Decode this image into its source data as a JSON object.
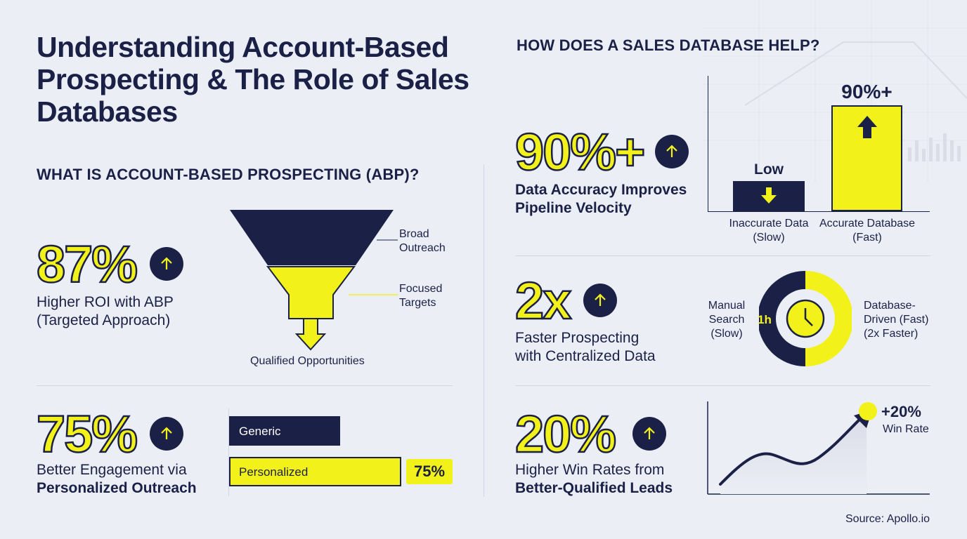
{
  "title": "Understanding Account-Based Prospecting & The Role of Sales Databases",
  "left": {
    "heading": "WHAT IS ACCOUNT-BASED PROSPECTING (ABP)?",
    "stat1": {
      "value": "87%",
      "line1": "Higher ROI with ABP",
      "line2": "(Targeted Approach)"
    },
    "funnel": {
      "broad_line1": "Broad",
      "broad_line2": "Outreach",
      "focused_line1": "Focused",
      "focused_line2": "Targets",
      "qualified": "Qualified Opportunities"
    },
    "stat2": {
      "value": "75%",
      "line1": "Better Engagement via",
      "line2": "Personalized Outreach"
    },
    "bars": {
      "generic_label": "Generic",
      "personalized_label": "Personalized",
      "badge": "75%"
    }
  },
  "right": {
    "heading": "HOW DOES A SALES DATABASE HELP?",
    "stat1": {
      "value": "90%+",
      "line1": "Data Accuracy Improves",
      "line2": "Pipeline Velocity"
    },
    "accuracy_chart": {
      "low_label": "Low",
      "high_label": "90%+",
      "cat1_line1": "Inaccurate Data",
      "cat1_line2": "(Slow)",
      "cat2_line1": "Accurate Database",
      "cat2_line2": "(Fast)"
    },
    "stat2": {
      "value": "2x",
      "line1": "Faster Prospecting",
      "line2": "with Centralized Data"
    },
    "donut": {
      "left_line1": "Manual",
      "left_line2": "Search",
      "left_line3": "(Slow)",
      "inner_label": "1h",
      "right_line1": "Database-",
      "right_line2": "Driven (Fast)",
      "right_line3": "(2x Faster)",
      "fraction": 0.5
    },
    "stat3": {
      "value": "20%",
      "line1": "Higher Win Rates from",
      "line2": "Better-Qualified Leads"
    },
    "trend": {
      "value_label": "+20%",
      "sub_label": "Win Rate"
    }
  },
  "source": "Source: Apollo.io",
  "colors": {
    "navy": "#1b2146",
    "yellow": "#f3f11a",
    "background": "#eceef6"
  }
}
